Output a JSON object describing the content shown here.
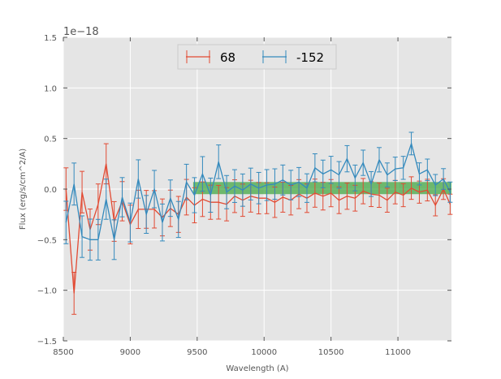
{
  "chart_data": {
    "type": "line",
    "title": "",
    "xlabel": "Wavelength (A)",
    "ylabel": "Flux (erg/s/cm^2/A)",
    "offset_label": "1e−18",
    "xlim": [
      8500,
      11400
    ],
    "ylim": [
      -1.5,
      1.5
    ],
    "xticks": [
      8500,
      9000,
      9500,
      10000,
      10500,
      11000
    ],
    "xtick_labels": [
      "8500",
      "9000",
      "9500",
      "10000",
      "10500",
      "11000"
    ],
    "yticks": [
      -1.5,
      -1.0,
      -0.5,
      0.0,
      0.5,
      1.0,
      1.5
    ],
    "ytick_labels": [
      "−1.5",
      "−1.0",
      "−0.5",
      "0.0",
      "0.5",
      "1.0",
      "1.5"
    ],
    "grid": true,
    "legend_position": "top-center",
    "series": [
      {
        "name": "68",
        "color": "#e24a33",
        "err_start": 0.21,
        "err_end": 0.1,
        "points": [
          [
            8520,
            -0.05
          ],
          [
            8580,
            -0.45
          ],
          [
            8640,
            -0.15
          ],
          [
            8700,
            -0.35
          ],
          [
            8760,
            -0.25
          ],
          [
            8820,
            -0.1
          ],
          [
            8880,
            -0.3
          ],
          [
            8940,
            -0.2
          ],
          [
            9000,
            -0.25
          ],
          [
            9060,
            -0.35
          ],
          [
            9120,
            -0.15
          ],
          [
            9180,
            -0.3
          ],
          [
            9240,
            -0.2
          ],
          [
            9300,
            -0.25
          ],
          [
            9360,
            -0.15
          ],
          [
            9420,
            -0.2
          ],
          [
            9480,
            -0.1
          ],
          [
            9540,
            -0.15
          ],
          [
            9600,
            -0.05
          ],
          [
            9660,
            -0.2
          ],
          [
            9720,
            -0.1
          ],
          [
            9780,
            -0.15
          ],
          [
            9840,
            -0.05
          ],
          [
            9900,
            -0.12
          ],
          [
            9960,
            -0.05
          ],
          [
            10020,
            -0.15
          ],
          [
            10080,
            -0.08
          ],
          [
            10140,
            -0.12
          ],
          [
            10200,
            -0.05
          ],
          [
            10260,
            -0.1
          ],
          [
            10320,
            -0.05
          ],
          [
            10380,
            -0.1
          ],
          [
            10440,
            -0.02
          ],
          [
            10500,
            -0.08
          ],
          [
            10560,
            -0.05
          ],
          [
            10620,
            -0.12
          ],
          [
            10680,
            -0.05
          ],
          [
            10740,
            -0.08
          ],
          [
            10800,
            0.0
          ],
          [
            10860,
            -0.1
          ],
          [
            10920,
            -0.05
          ],
          [
            10980,
            -0.08
          ],
          [
            11040,
            -0.02
          ],
          [
            11100,
            -0.05
          ],
          [
            11160,
            0.02
          ],
          [
            11220,
            -0.05
          ],
          [
            11280,
            -0.1
          ],
          [
            11340,
            -0.05
          ],
          [
            11390,
            -0.12
          ]
        ],
        "noise": [
          0.05,
          -0.58,
          0.12,
          -0.05,
          0.1,
          0.35,
          -0.02,
          0.08,
          -0.1,
          0.15,
          -0.05,
          0.1,
          -0.08,
          0.06,
          -0.1,
          0.12,
          -0.06,
          0.05,
          -0.08,
          0.07,
          -0.05,
          0.08,
          -0.06,
          0.05,
          -0.04,
          0.06,
          -0.05,
          0.04,
          -0.06,
          0.05,
          -0.04,
          0.06,
          -0.05,
          0.04,
          -0.06,
          0.05,
          -0.04,
          0.06,
          -0.05,
          0.04,
          -0.06,
          0.05,
          -0.04,
          0.06,
          -0.05,
          0.04,
          -0.06,
          0.05,
          -0.03
        ]
      },
      {
        "name": "-152",
        "color": "#348abd",
        "err_start": 0.21,
        "err_end": 0.1,
        "points": [
          [
            8520,
            -0.25
          ],
          [
            8580,
            -0.05
          ],
          [
            8640,
            -0.35
          ],
          [
            8700,
            -0.3
          ],
          [
            8760,
            -0.55
          ],
          [
            8820,
            -0.2
          ],
          [
            8880,
            -0.4
          ],
          [
            8940,
            -0.2
          ],
          [
            9000,
            -0.25
          ],
          [
            9060,
            -0.05
          ],
          [
            9120,
            -0.2
          ],
          [
            9180,
            -0.1
          ],
          [
            9240,
            -0.25
          ],
          [
            9300,
            -0.15
          ],
          [
            9360,
            -0.2
          ],
          [
            9420,
            -0.05
          ],
          [
            9480,
            0.0
          ],
          [
            9540,
            0.05
          ],
          [
            9600,
            -0.02
          ],
          [
            9660,
            0.05
          ],
          [
            9720,
            0.02
          ],
          [
            9780,
            -0.05
          ],
          [
            9840,
            0.05
          ],
          [
            9900,
            0.0
          ],
          [
            9960,
            0.05
          ],
          [
            10020,
            -0.02
          ],
          [
            10080,
            0.1
          ],
          [
            10140,
            0.05
          ],
          [
            10200,
            0.1
          ],
          [
            10260,
            0.02
          ],
          [
            10320,
            0.05
          ],
          [
            10380,
            0.15
          ],
          [
            10440,
            0.2
          ],
          [
            10500,
            0.15
          ],
          [
            10560,
            0.2
          ],
          [
            10620,
            0.25
          ],
          [
            10680,
            0.15
          ],
          [
            10740,
            0.2
          ],
          [
            10800,
            0.1
          ],
          [
            10860,
            0.25
          ],
          [
            10920,
            0.2
          ],
          [
            10980,
            0.15
          ],
          [
            11040,
            0.25
          ],
          [
            11100,
            0.3
          ],
          [
            11160,
            0.2
          ],
          [
            11220,
            0.15
          ],
          [
            11280,
            0.1
          ],
          [
            11340,
            0.05
          ],
          [
            11390,
            0.0
          ]
        ],
        "noise": [
          -0.08,
          0.1,
          -0.12,
          -0.2,
          0.05,
          0.1,
          -0.1,
          0.12,
          -0.08,
          0.15,
          -0.05,
          0.1,
          -0.08,
          0.06,
          -0.1,
          0.12,
          -0.06,
          0.1,
          -0.04,
          0.22,
          -0.05,
          0.08,
          -0.06,
          0.05,
          -0.04,
          0.06,
          -0.05,
          0.04,
          -0.06,
          0.05,
          -0.04,
          0.06,
          -0.05,
          0.04,
          -0.06,
          0.05,
          -0.04,
          0.06,
          -0.05,
          0.04,
          -0.06,
          0.05,
          -0.04,
          0.15,
          -0.05,
          0.04,
          -0.06,
          0.05,
          -0.03
        ]
      }
    ],
    "band": {
      "x_start": 9470,
      "x_end": 11400,
      "y_low": -0.05,
      "y_high": 0.07,
      "color": "#2ca02c"
    }
  }
}
